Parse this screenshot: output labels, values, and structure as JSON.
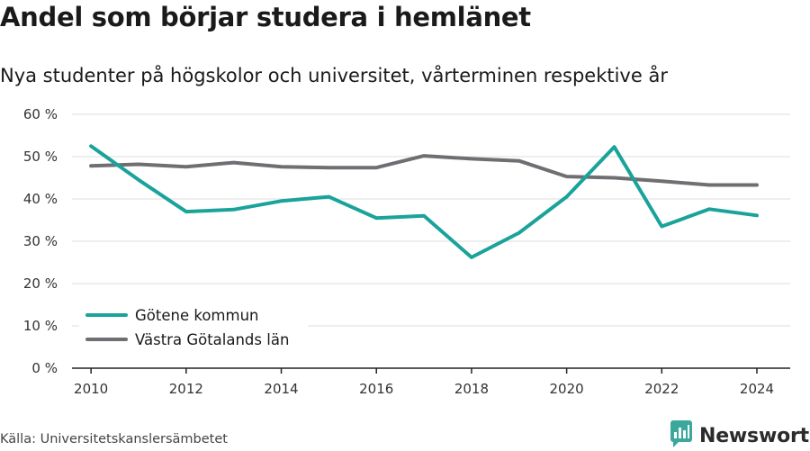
{
  "header": {
    "title": "Andel som börjar studera i hemlänet",
    "subtitle": "Nya studenter på högskolor och universitet, vårterminen respektive år"
  },
  "footer": {
    "source": "Källa: Universitetskanslersämbetet",
    "brand": "Newsworthy",
    "brand_icon": "newsworthy-logo-icon",
    "brand_color": "#3aa89b"
  },
  "chart_data": {
    "type": "line",
    "title": "Andel som börjar studera i hemlänet",
    "subtitle": "Nya studenter på högskolor och universitet, vårterminen respektive år",
    "x": [
      2010,
      2011,
      2012,
      2013,
      2014,
      2015,
      2016,
      2017,
      2018,
      2019,
      2020,
      2021,
      2022,
      2023,
      2024
    ],
    "x_ticks": [
      "2010",
      "2012",
      "2014",
      "2016",
      "2018",
      "2020",
      "2022",
      "2024"
    ],
    "y_ticks": [
      "0 %",
      "10 %",
      "20 %",
      "30 %",
      "40 %",
      "50 %",
      "60 %"
    ],
    "ylim": [
      0,
      60
    ],
    "xlim": [
      2009.6,
      2024.7
    ],
    "grid": true,
    "legend_position": "bottom-left",
    "series": [
      {
        "name": "Götene kommun",
        "color": "#1aa39a",
        "values": [
          52.5,
          44.5,
          37.0,
          37.5,
          39.5,
          40.5,
          35.5,
          36.0,
          26.2,
          32.0,
          40.5,
          52.3,
          33.5,
          37.6,
          36.1
        ]
      },
      {
        "name": "Västra Götalands län",
        "color": "#6f6f73",
        "values": [
          47.8,
          48.2,
          47.6,
          48.6,
          47.6,
          47.4,
          47.4,
          50.2,
          49.5,
          49.0,
          45.3,
          45.0,
          44.2,
          43.3,
          43.3
        ]
      }
    ]
  }
}
